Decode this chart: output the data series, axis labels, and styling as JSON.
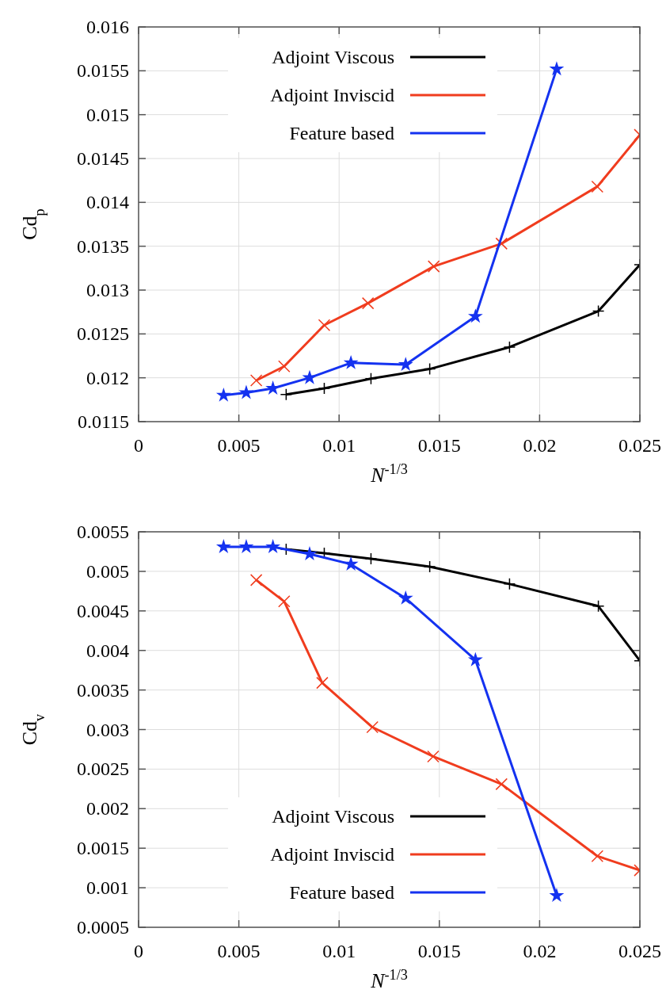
{
  "chart_data": [
    {
      "type": "line",
      "xlabel": "N$^{-1/3}$",
      "ylabel": "Cd$_{p}$",
      "xlim": [
        0,
        0.025
      ],
      "xticks": [
        0,
        0.005,
        0.01,
        0.015,
        0.02,
        0.025
      ],
      "ylim": [
        0.0115,
        0.016
      ],
      "yticks": [
        0.0115,
        0.012,
        0.0125,
        0.013,
        0.0135,
        0.014,
        0.0145,
        0.015,
        0.0155,
        0.016
      ],
      "grid": true,
      "legend": "top left",
      "line_style": "solid",
      "series": [
        {
          "name": "Adjoint Viscous",
          "color": "#000000",
          "marker": "plus",
          "x": [
            0.00736,
            0.00926,
            0.01159,
            0.01452,
            0.0185,
            0.02293,
            0.025
          ],
          "values": [
            0.01181,
            0.01188,
            0.01199,
            0.0121,
            0.01235,
            0.01276,
            0.01329
          ]
        },
        {
          "name": "Adjoint Inviscid",
          "color": "#f03c1e",
          "marker": "cross",
          "x": [
            0.00587,
            0.00726,
            0.00926,
            0.01144,
            0.01472,
            0.0181,
            0.02288,
            0.025
          ],
          "values": [
            0.01197,
            0.01213,
            0.0126,
            0.01285,
            0.01327,
            0.01353,
            0.01418,
            0.01477
          ]
        },
        {
          "name": "Feature based",
          "color": "#1432f0",
          "marker": "star",
          "x": [
            0.00424,
            0.00537,
            0.0067,
            0.00853,
            0.01059,
            0.01332,
            0.0168,
            0.02085
          ],
          "values": [
            0.0118,
            0.01183,
            0.01188,
            0.012,
            0.01217,
            0.01215,
            0.0127,
            0.01552
          ]
        }
      ]
    },
    {
      "type": "line",
      "xlabel": "N$^{-1/3}$",
      "ylabel": "Cd$_{v}$",
      "xlim": [
        0,
        0.025
      ],
      "xticks": [
        0,
        0.005,
        0.01,
        0.015,
        0.02,
        0.025
      ],
      "ylim": [
        0.0005,
        0.0055
      ],
      "yticks": [
        0.0005,
        0.001,
        0.0015,
        0.002,
        0.0025,
        0.003,
        0.0035,
        0.004,
        0.0045,
        0.005,
        0.0055
      ],
      "grid": true,
      "legend": "bottom left",
      "line_style": "solid",
      "series": [
        {
          "name": "Adjoint Viscous",
          "color": "#000000",
          "marker": "plus",
          "x": [
            0.00736,
            0.00926,
            0.01159,
            0.01452,
            0.0185,
            0.02293,
            0.025
          ],
          "values": [
            0.00528,
            0.00523,
            0.00516,
            0.00506,
            0.00484,
            0.00456,
            0.00387
          ]
        },
        {
          "name": "Adjoint Inviscid",
          "color": "#f03c1e",
          "marker": "cross",
          "x": [
            0.00587,
            0.00726,
            0.00916,
            0.01166,
            0.01469,
            0.0181,
            0.02288,
            0.025
          ],
          "values": [
            0.00489,
            0.00462,
            0.00359,
            0.00303,
            0.00266,
            0.00231,
            0.0014,
            0.00122
          ]
        },
        {
          "name": "Feature based",
          "color": "#1432f0",
          "marker": "star",
          "x": [
            0.00424,
            0.00537,
            0.0067,
            0.00853,
            0.01059,
            0.01332,
            0.0168,
            0.02085
          ],
          "values": [
            0.00531,
            0.00531,
            0.00531,
            0.00522,
            0.00509,
            0.00466,
            0.00388,
            0.0009
          ]
        }
      ]
    }
  ]
}
